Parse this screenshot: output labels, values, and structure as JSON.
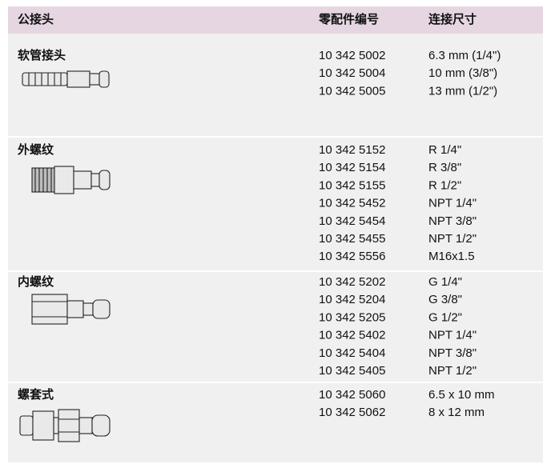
{
  "header": {
    "title": "公接头",
    "part_no": "零配件编号",
    "size": "连接尺寸"
  },
  "sections": [
    {
      "name": "软管接头",
      "rows": [
        [
          "10 342 5002",
          "6.3 mm (1/4\")"
        ],
        [
          "10 342 5004",
          "10 mm (3/8\")"
        ],
        [
          "10 342 5005",
          "13 mm (1/2\")"
        ]
      ]
    },
    {
      "name": "外螺纹",
      "rows": [
        [
          "10 342 5152",
          "R 1/4\""
        ],
        [
          "10 342 5154",
          "R 3/8\""
        ],
        [
          "10 342 5155",
          "R 1/2\""
        ],
        [
          "10 342 5452",
          "NPT 1/4\""
        ],
        [
          "10 342 5454",
          "NPT 3/8\""
        ],
        [
          "10 342 5455",
          "NPT 1/2\""
        ],
        [
          "10 342 5556",
          "M16x1.5"
        ]
      ]
    },
    {
      "name": "内螺纹",
      "rows": [
        [
          "10 342 5202",
          "G 1/4\""
        ],
        [
          "10 342 5204",
          "G 3/8\""
        ],
        [
          "10 342 5205",
          "G 1/2\""
        ],
        [
          "10 342 5402",
          "NPT 1/4\""
        ],
        [
          "10 342 5404",
          "NPT 3/8\""
        ],
        [
          "10 342 5405",
          "NPT 1/2\""
        ]
      ]
    },
    {
      "name": "螺套式",
      "rows": [
        [
          "10 342 5060",
          "6.5 x 10 mm"
        ],
        [
          "10 342 5062",
          "8 x 12 mm"
        ]
      ]
    }
  ]
}
